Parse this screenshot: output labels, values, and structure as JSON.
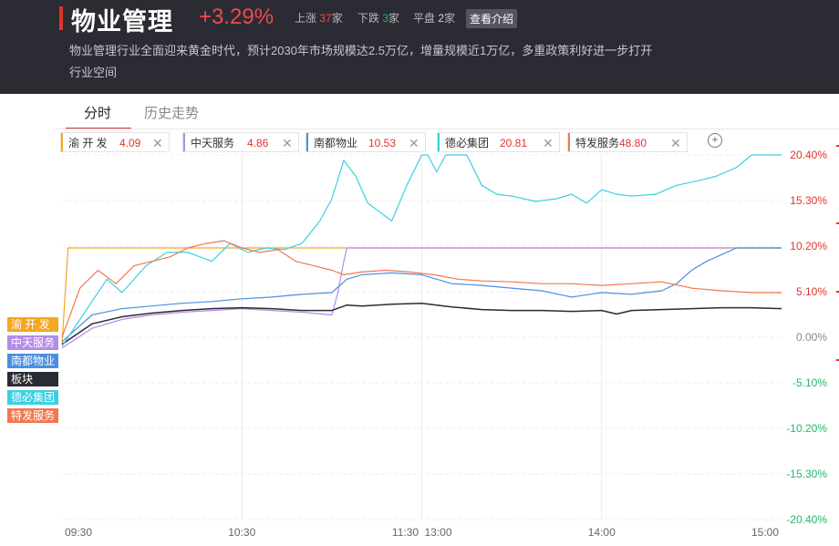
{
  "header": {
    "title": "物业管理",
    "change": "+3.29%",
    "up_label": "上涨",
    "up_count": "37",
    "down_label": "下跌",
    "down_count": "3",
    "flat_label": "平盘",
    "flat_count": "2",
    "unit": "家",
    "intro_button": "查看介绍",
    "description": "物业管理行业全面迎来黄金时代，预计2030年市场规模达2.5万亿，增量规模近1万亿，多重政策利好进一步打开行业空间"
  },
  "tabs": [
    "分时",
    "历史走势"
  ],
  "chips": [
    {
      "name": "渝 开 发",
      "value": "4.09",
      "color": "#f5a623"
    },
    {
      "name": "中天服务",
      "value": "4.86",
      "color": "#b58ae8"
    },
    {
      "name": "南都物业",
      "value": "10.53",
      "color": "#4a90e2"
    },
    {
      "name": "德必集团",
      "value": "20.81",
      "color": "#3ccfe0"
    },
    {
      "name": "特发服务",
      "value": "48.80",
      "color": "#f07850"
    }
  ],
  "legend": [
    {
      "name": "渝 开 发",
      "color": "#f5a623"
    },
    {
      "name": "中天服务",
      "color": "#b58ae8"
    },
    {
      "name": "南都物业",
      "color": "#4a90e2"
    },
    {
      "name": "板块",
      "color": "#2b2b33"
    },
    {
      "name": "德必集团",
      "color": "#3ccfe0"
    },
    {
      "name": "特发服务",
      "color": "#f07850"
    }
  ],
  "chart_data": {
    "type": "line",
    "x_ticks": [
      "09:30",
      "10:30",
      "11:30",
      "13:00",
      "14:00",
      "15:00"
    ],
    "y_ticks": [
      "20.40%",
      "15.30%",
      "10.20%",
      "5.10%",
      "0.00%",
      "-5.10%",
      "-10.20%",
      "-15.30%",
      "-20.40%"
    ],
    "ylim": [
      -20.4,
      20.4
    ],
    "x_range": [
      0,
      240
    ],
    "series": [
      {
        "name": "渝 开 发",
        "color": "#f5a623",
        "x": [
          0,
          2,
          3,
          240
        ],
        "y": [
          -0.8,
          10.0,
          10.0,
          10.0
        ]
      },
      {
        "name": "中天服务",
        "color": "#b58ae8",
        "x": [
          0,
          10,
          20,
          30,
          40,
          50,
          60,
          70,
          80,
          90,
          92,
          94,
          95,
          120,
          150,
          180,
          210,
          240
        ],
        "y": [
          -1.2,
          1.0,
          2.0,
          2.5,
          2.8,
          3.0,
          3.2,
          3.0,
          2.8,
          2.5,
          5.0,
          8.5,
          10.0,
          10.0,
          10.0,
          10.0,
          10.0,
          10.0
        ]
      },
      {
        "name": "南都物业",
        "color": "#4a90e2",
        "x": [
          0,
          10,
          20,
          30,
          40,
          50,
          60,
          70,
          80,
          90,
          95,
          100,
          110,
          120,
          130,
          140,
          150,
          160,
          170,
          180,
          190,
          200,
          205,
          210,
          215,
          225,
          240
        ],
        "y": [
          -0.5,
          2.5,
          3.2,
          3.5,
          3.8,
          4.0,
          4.3,
          4.5,
          4.8,
          5.0,
          6.5,
          7.0,
          7.2,
          7.0,
          6.0,
          5.8,
          5.5,
          5.2,
          4.5,
          5.0,
          4.8,
          5.2,
          6.0,
          7.5,
          8.5,
          10.0,
          10.0
        ]
      },
      {
        "name": "板块",
        "color": "#2b2b33",
        "x": [
          0,
          10,
          20,
          30,
          40,
          50,
          60,
          70,
          80,
          90,
          95,
          100,
          110,
          120,
          130,
          140,
          150,
          160,
          170,
          180,
          185,
          190,
          200,
          210,
          220,
          230,
          240
        ],
        "y": [
          -0.8,
          1.5,
          2.3,
          2.7,
          3.0,
          3.2,
          3.3,
          3.2,
          3.0,
          3.0,
          3.6,
          3.5,
          3.7,
          3.8,
          3.4,
          3.1,
          3.0,
          3.0,
          2.9,
          3.0,
          2.6,
          3.0,
          3.1,
          3.2,
          3.3,
          3.3,
          3.2
        ]
      },
      {
        "name": "德必集团",
        "color": "#3ccfe0",
        "x": [
          0,
          8,
          15,
          20,
          28,
          35,
          42,
          50,
          56,
          62,
          68,
          74,
          80,
          86,
          90,
          94,
          98,
          102,
          106,
          110,
          115,
          120,
          122,
          125,
          128,
          130,
          135,
          140,
          145,
          150,
          158,
          165,
          170,
          175,
          180,
          185,
          190,
          198,
          205,
          212,
          218,
          225,
          230,
          235,
          240
        ],
        "y": [
          -1.0,
          3.0,
          6.5,
          5.0,
          8.0,
          9.5,
          9.5,
          8.5,
          10.5,
          9.5,
          10.0,
          9.8,
          10.5,
          13.0,
          15.5,
          19.8,
          18.0,
          15.0,
          14.0,
          13.0,
          17.0,
          20.4,
          20.4,
          18.5,
          20.4,
          20.4,
          20.4,
          17.0,
          16.0,
          15.8,
          15.2,
          15.5,
          16.0,
          15.0,
          16.5,
          16.0,
          15.8,
          16.0,
          17.0,
          17.5,
          18.0,
          19.0,
          20.4,
          20.4,
          20.4
        ]
      },
      {
        "name": "特发服务",
        "color": "#f07850",
        "x": [
          0,
          6,
          12,
          18,
          24,
          30,
          36,
          42,
          48,
          54,
          60,
          66,
          72,
          78,
          84,
          90,
          94,
          100,
          108,
          116,
          124,
          132,
          140,
          150,
          160,
          170,
          180,
          190,
          200,
          210,
          220,
          230,
          240
        ],
        "y": [
          0.0,
          5.5,
          7.5,
          6.0,
          8.0,
          8.5,
          9.0,
          10.0,
          10.5,
          10.8,
          10.0,
          9.5,
          9.8,
          8.5,
          8.0,
          7.5,
          7.0,
          7.3,
          7.5,
          7.3,
          7.0,
          6.5,
          6.3,
          6.2,
          6.0,
          6.0,
          5.8,
          6.0,
          6.2,
          5.5,
          5.2,
          5.0,
          5.0
        ]
      }
    ]
  }
}
